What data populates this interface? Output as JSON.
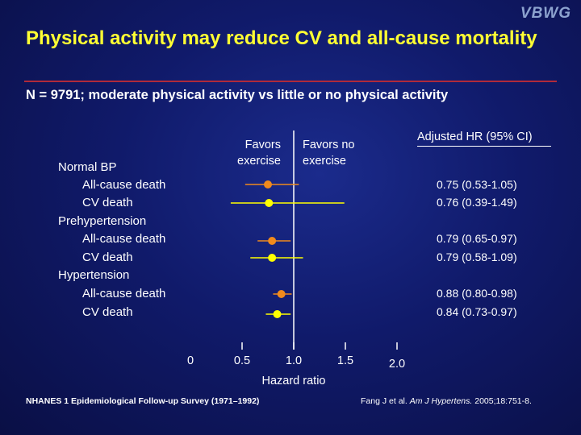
{
  "logo": "VBWG",
  "title": "Physical activity may reduce CV and all-cause mortality",
  "subtitle": "N = 9791; moderate physical activity vs little or no physical activity",
  "favors_left": "Favors exercise",
  "favors_right": "Favors no exercise",
  "hr_column_header": "Adjusted HR (95% CI)",
  "group_labels": [
    "Normal BP",
    "Prehypertension",
    "Hypertension"
  ],
  "row_labels": [
    "All-cause death",
    "CV death",
    "All-cause death",
    "CV death",
    "All-cause death",
    "CV death"
  ],
  "hr_values": [
    "0.75 (0.53-1.05)",
    "0.76 (0.39-1.49)",
    "0.79 (0.65-0.97)",
    "0.79 (0.58-1.09)",
    "0.88 (0.80-0.98)",
    "0.84 (0.73-0.97)"
  ],
  "footer_left": "NHANES 1 Epidemiological Follow-up Survey (1971–1992)",
  "footer_right_pre": "Fang J et al. ",
  "footer_right_journal": "Am J Hypertens.",
  "footer_right_post": " 2005;18:751-8.",
  "colors": {
    "background": "#101a6a",
    "title": "#ffff33",
    "rule": "#b02a3a",
    "all_cause": "#f08a1c",
    "cv_death": "#ffff00"
  },
  "chart_data": {
    "type": "forest",
    "xlabel": "Hazard ratio",
    "reference_line": 1.0,
    "xlim": [
      0,
      2.0
    ],
    "x_tick_labels": [
      "0",
      "0.5",
      "1.0",
      "1.5",
      "2.0"
    ],
    "series": [
      {
        "name": "All-cause death",
        "color": "#f08a1c"
      },
      {
        "name": "CV death",
        "color": "#ffff00"
      }
    ],
    "rows": [
      {
        "group": "Normal BP",
        "outcome": "All-cause death",
        "hr": 0.75,
        "lo": 0.53,
        "hi": 1.05
      },
      {
        "group": "Normal BP",
        "outcome": "CV death",
        "hr": 0.76,
        "lo": 0.39,
        "hi": 1.49
      },
      {
        "group": "Prehypertension",
        "outcome": "All-cause death",
        "hr": 0.79,
        "lo": 0.65,
        "hi": 0.97
      },
      {
        "group": "Prehypertension",
        "outcome": "CV death",
        "hr": 0.79,
        "lo": 0.58,
        "hi": 1.09
      },
      {
        "group": "Hypertension",
        "outcome": "All-cause death",
        "hr": 0.88,
        "lo": 0.8,
        "hi": 0.98
      },
      {
        "group": "Hypertension",
        "outcome": "CV death",
        "hr": 0.84,
        "lo": 0.73,
        "hi": 0.97
      }
    ]
  }
}
